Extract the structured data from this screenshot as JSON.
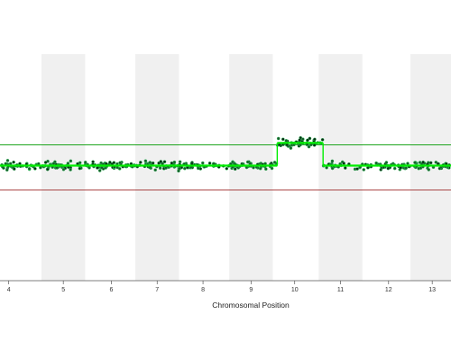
{
  "chart_data": {
    "type": "scatter",
    "title": "",
    "xlabel": "Chromosomal Position",
    "ylabel": "",
    "xlim": [
      3.55,
      13.88
    ],
    "ylim": [
      -1.0,
      1.5
    ],
    "grid": false,
    "shaded_bands": [
      "5",
      "7",
      "9",
      "11",
      "13"
    ],
    "categories": [
      {
        "label": "4",
        "x": 3.75
      },
      {
        "label": "5",
        "x": 5.0
      },
      {
        "label": "6",
        "x": 6.1
      },
      {
        "label": "7",
        "x": 7.15
      },
      {
        "label": "8",
        "x": 8.2
      },
      {
        "label": "9",
        "x": 9.3
      },
      {
        "label": "10",
        "x": 10.3
      },
      {
        "label": "11",
        "x": 11.35
      },
      {
        "label": "12",
        "x": 12.45
      },
      {
        "label": "13",
        "x": 13.45
      }
    ],
    "reference_lines": [
      {
        "y": 0.5,
        "color": "#009900"
      },
      {
        "y": 0.0,
        "color": "#a03030"
      }
    ],
    "segments": [
      {
        "x0": 3.55,
        "x1": 9.9,
        "y": 0.27
      },
      {
        "x0": 9.9,
        "x1": 10.95,
        "y": 0.52
      },
      {
        "x0": 10.95,
        "x1": 13.88,
        "y": 0.27
      }
    ],
    "points": {
      "seed": 17,
      "count_per_segment": [
        300,
        60,
        120
      ],
      "spread": 0.045
    },
    "colors": {
      "background": "#ffffff",
      "band": "#f0f0f0",
      "points": "#1a5a2a",
      "segment": "#00ee00",
      "upper_line": "#009900",
      "lower_line": "#a03030"
    }
  }
}
